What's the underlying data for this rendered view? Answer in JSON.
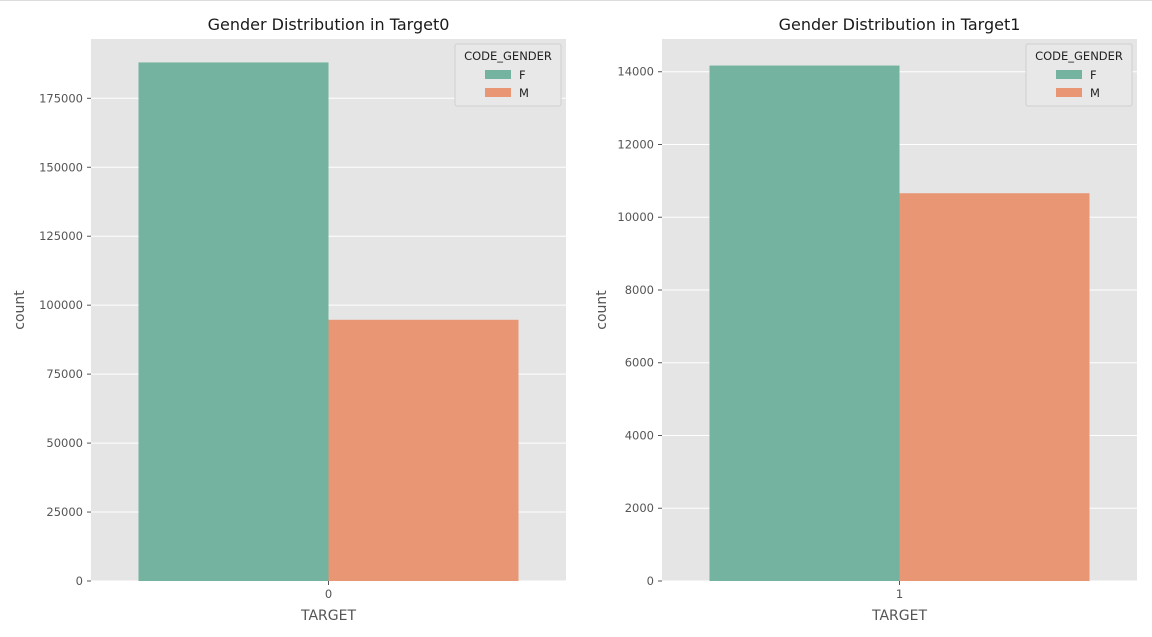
{
  "charts": [
    {
      "chart_data": {
        "type": "bar",
        "title": "Gender Distribution in Target0",
        "xlabel": "TARGET",
        "ylabel": "count",
        "categories": [
          "0"
        ],
        "series": [
          {
            "name": "F",
            "values": [
              188000
            ],
            "color": "#73b3a0"
          },
          {
            "name": "M",
            "values": [
              94700
            ],
            "color": "#e89674"
          }
        ],
        "ylim": [
          0,
          196500
        ],
        "yticks": [
          0,
          25000,
          50000,
          75000,
          100000,
          125000,
          150000,
          175000
        ],
        "legend": {
          "title": "CODE_GENDER",
          "placement": "top-right"
        },
        "grid": true
      }
    },
    {
      "chart_data": {
        "type": "bar",
        "title": "Gender Distribution in Target1",
        "xlabel": "TARGET",
        "ylabel": "count",
        "categories": [
          "1"
        ],
        "series": [
          {
            "name": "F",
            "values": [
              14170
            ],
            "color": "#73b3a0"
          },
          {
            "name": "M",
            "values": [
              10660
            ],
            "color": "#e89674"
          }
        ],
        "ylim": [
          0,
          14900
        ],
        "yticks": [
          0,
          2000,
          4000,
          6000,
          8000,
          10000,
          12000,
          14000
        ],
        "legend": {
          "title": "CODE_GENDER",
          "placement": "top-right"
        },
        "grid": true
      }
    }
  ],
  "style": {
    "panel_background": "#e5e5e5",
    "grid_color": "#ffffff"
  }
}
